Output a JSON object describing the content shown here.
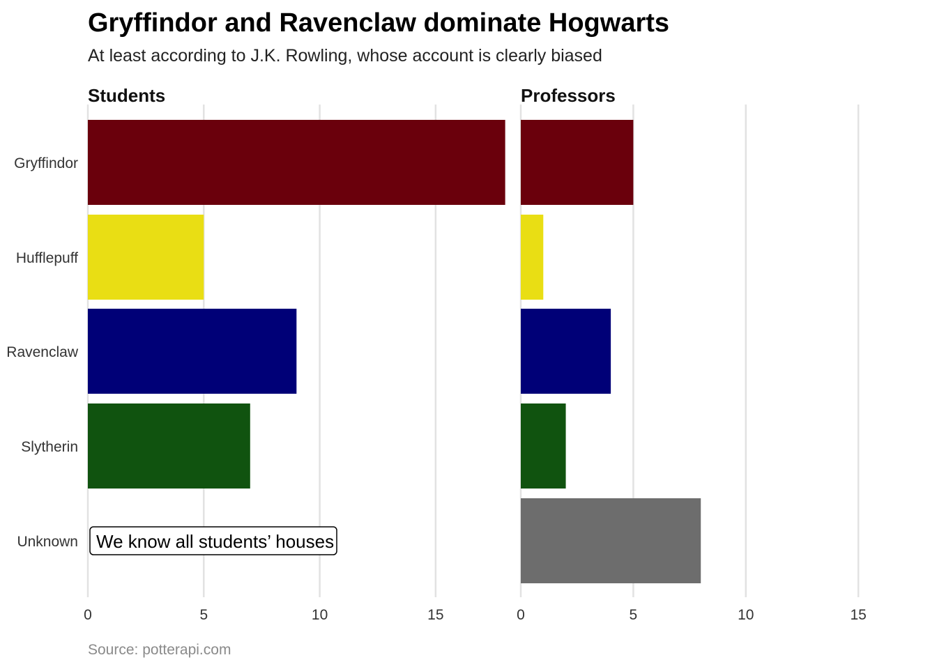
{
  "title": "Gryffindor and Ravenclaw dominate Hogwarts",
  "subtitle": "At least according to J.K. Rowling, whose account is clearly biased",
  "caption": "Source: potterapi.com",
  "chart_data": [
    {
      "type": "bar",
      "orientation": "horizontal",
      "panel_title": "Students",
      "categories": [
        "Gryffindor",
        "Hufflepuff",
        "Ravenclaw",
        "Slytherin",
        "Unknown"
      ],
      "values": [
        18,
        5,
        9,
        7,
        0
      ],
      "colors": [
        "#6a000c",
        "#e9de14",
        "#000077",
        "#10530f",
        "#6d6d6d"
      ],
      "xlim": [
        0,
        17.5
      ],
      "xticks": [
        0,
        5,
        10,
        15
      ],
      "grid": true,
      "annotation": {
        "category": "Unknown",
        "text": "We know all students’ houses"
      }
    },
    {
      "type": "bar",
      "orientation": "horizontal",
      "panel_title": "Professors",
      "categories": [
        "Gryffindor",
        "Hufflepuff",
        "Ravenclaw",
        "Slytherin",
        "Unknown"
      ],
      "values": [
        5,
        1,
        4,
        2,
        8
      ],
      "colors": [
        "#6a000c",
        "#e9de14",
        "#000077",
        "#10530f",
        "#6d6d6d"
      ],
      "xlim": [
        0,
        15.8
      ],
      "xticks": [
        0,
        5,
        10,
        15
      ],
      "grid": true
    }
  ]
}
